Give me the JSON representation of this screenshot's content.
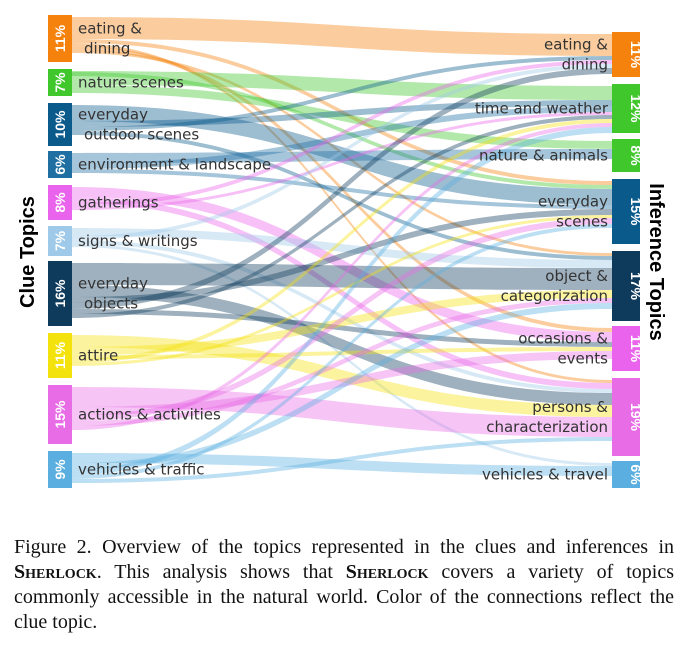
{
  "diagram": {
    "left_title": "Clue Topics",
    "right_title": "Inference Topics",
    "clue_topics": [
      {
        "lines": [
          "eating &",
          "dining"
        ],
        "pct": "11%",
        "color": "#f5820d"
      },
      {
        "lines": [
          "nature scenes"
        ],
        "pct": "7%",
        "color": "#3fc72c"
      },
      {
        "lines": [
          "everyday",
          "outdoor scenes"
        ],
        "pct": "10%",
        "color": "#0b5a8c"
      },
      {
        "lines": [
          "environment & landscape"
        ],
        "pct": "6%",
        "color": "#1f6fa3"
      },
      {
        "lines": [
          "gatherings"
        ],
        "pct": "8%",
        "color": "#ea63ec"
      },
      {
        "lines": [
          "signs & writings"
        ],
        "pct": "7%",
        "color": "#9ec9e8"
      },
      {
        "lines": [
          "everyday",
          "objects"
        ],
        "pct": "16%",
        "color": "#0e3b5c"
      },
      {
        "lines": [
          "attire"
        ],
        "pct": "11%",
        "color": "#f4e20c"
      },
      {
        "lines": [
          "actions & activities"
        ],
        "pct": "15%",
        "color": "#e86ce6"
      },
      {
        "lines": [
          "vehicles & traffic"
        ],
        "pct": "9%",
        "color": "#5aaee0"
      }
    ],
    "inference_topics": [
      {
        "lines": [
          "eating &",
          "dining"
        ],
        "pct": "11%",
        "color": "#f5820d"
      },
      {
        "lines": [
          "time and weather"
        ],
        "pct": "12%",
        "color": "#3fc72c"
      },
      {
        "lines": [
          "nature & animals"
        ],
        "pct": "8%",
        "color": "#3fc72c"
      },
      {
        "lines": [
          "everyday",
          "scenes"
        ],
        "pct": "15%",
        "color": "#0b5a8c"
      },
      {
        "lines": [
          "object &",
          "categorization"
        ],
        "pct": "17%",
        "color": "#0e3b5c"
      },
      {
        "lines": [
          "occasions &",
          "events"
        ],
        "pct": "11%",
        "color": "#ea63ec"
      },
      {
        "lines": [
          "persons &",
          "characterization"
        ],
        "pct": "19%",
        "color": "#e86ce6"
      },
      {
        "lines": [
          "vehicles & travel"
        ],
        "pct": "6%",
        "color": "#5aaee0"
      }
    ]
  },
  "caption": {
    "prefix": "Figure 2. Overview of the topics represented in the clues and infer­ences in ",
    "name1": "Sherlock",
    "middle": ". This analysis shows that ",
    "name2": "Sherlock",
    "suffix": " cov­ers a variety of topics commonly accessible in the natural world. Color of the connections reflect the clue topic."
  }
}
